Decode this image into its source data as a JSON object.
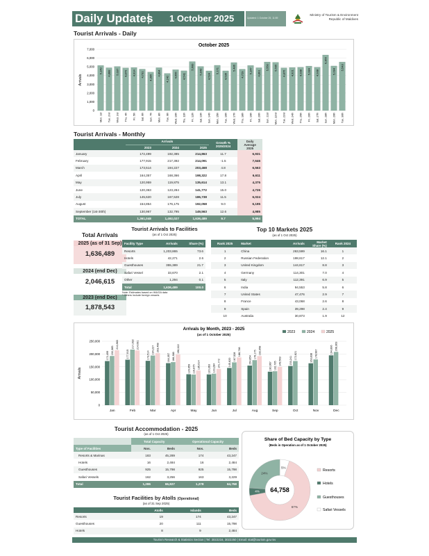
{
  "header": {
    "title": "Daily Updates",
    "separator": "|",
    "date": "1 October 2025",
    "updated": "Updated: 1 October 25, 11:59",
    "ministry_line1": "Ministry of Tourism & Environment",
    "ministry_line2": "Republic of Maldives"
  },
  "colors": {
    "primary": "#4f7a6c",
    "light": "#d9e4df",
    "pink": "#f4d3d3",
    "y2023": "#4f7a6c",
    "y2024": "#8fb3a4",
    "y2025": "#f4d3d3"
  },
  "daily": {
    "section_title": "Tourist Arrivals - Daily",
    "chart_title": "October 2025",
    "ylabel": "Arrivals"
  },
  "monthly": {
    "section_title": "Tourist Arrivals - Monthly",
    "group_header": "Arrivals",
    "col_growth": "Growth %",
    "col_growth2": "2025/2024",
    "col_daily": "Daily",
    "col_daily2": "Average",
    "col_daily3": "2025",
    "years": [
      "2023",
      "2024",
      "2025"
    ],
    "rows": [
      {
        "m": "January",
        "a": "172,499",
        "b": "192,385",
        "c": "214,863",
        "g": "11.7",
        "d": "6,931"
      },
      {
        "m": "February",
        "a": "177,915",
        "b": "217,392",
        "c": "214,091",
        "g": "-1.5",
        "d": "7,646"
      },
      {
        "m": "March",
        "a": "173,514",
        "b": "194,227",
        "c": "203,468",
        "g": "4.8",
        "d": "6,563"
      },
      {
        "m": "April",
        "a": "164,357",
        "b": "168,366",
        "c": "198,322",
        "g": "17.8",
        "d": "6,611"
      },
      {
        "m": "May",
        "a": "120,959",
        "b": "119,875",
        "c": "135,614",
        "g": "13.1",
        "d": "4,375"
      },
      {
        "m": "June",
        "a": "120,363",
        "b": "123,284",
        "c": "141,772",
        "g": "15.0",
        "d": "4,726"
      },
      {
        "m": "July",
        "a": "145,620",
        "b": "167,528",
        "c": "186,738",
        "g": "11.5",
        "d": "6,024"
      },
      {
        "m": "August",
        "a": "154,854",
        "b": "176,175",
        "c": "192,058",
        "g": "9.0",
        "d": "6,195"
      },
      {
        "m": "September (1st-30th)",
        "a": "130,967",
        "b": "132,795",
        "c": "149,563",
        "g": "12.6",
        "d": "4,985"
      }
    ],
    "total": {
      "m": "TOTAL",
      "a": "1,361,048",
      "b": "1,492,027",
      "c": "1,636,489",
      "g": "9.7",
      "d": "5,994"
    }
  },
  "totals": {
    "title": "Total Arrivals",
    "c2025_label": "2025 (as of 31 Sep)",
    "c2025_value": "1,636,489",
    "c2024_label": "2024 (end Dec)",
    "c2024_value": "2,046,615",
    "c2023_label": "2023 (end Dec)",
    "c2023_value": "1,878,543"
  },
  "facilities": {
    "title": "Tourist Arrivals to Facilities",
    "subtitle": "(as of 1 Oct 2025)",
    "headers": [
      "Facility Type",
      "Arrivals",
      "Share (%)"
    ],
    "rows": [
      {
        "t": "Resorts",
        "a": "1,203,865",
        "s": "73.6"
      },
      {
        "t": "Hotels",
        "a": "42,271",
        "s": "2.6"
      },
      {
        "t": "Guesthouses",
        "a": "355,389",
        "s": "21.7"
      },
      {
        "t": "Safari Vessel",
        "a": "33,670",
        "s": "2.1"
      },
      {
        "t": "Other",
        "a": "1,294",
        "s": "0.1"
      }
    ],
    "total": {
      "t": "Total",
      "a": "1,636,489",
      "s": "100.0"
    },
    "note1": "Note: Estimates based on IMUGA data",
    "note2": "* Others include foreign vessels"
  },
  "markets": {
    "title": "Top 10 Markets 2025",
    "subtitle": "(as of 1 Oct 2025)",
    "headers": [
      "Rank 2025",
      "Market",
      "Arrivals",
      "Market Share (%)",
      "Rank 2024"
    ],
    "rows": [
      {
        "r": "1",
        "m": "China",
        "a": "263,599",
        "s": "16.1",
        "p": "1"
      },
      {
        "r": "2",
        "m": "Russian Federation",
        "a": "198,617",
        "s": "12.1",
        "p": "2"
      },
      {
        "r": "3",
        "m": "United Kingdom",
        "a": "144,617",
        "s": "8.8",
        "p": "3"
      },
      {
        "r": "4",
        "m": "Germany",
        "a": "114,301",
        "s": "7.0",
        "p": "4"
      },
      {
        "r": "5",
        "m": "Italy",
        "a": "112,391",
        "s": "6.9",
        "p": "5"
      },
      {
        "r": "6",
        "m": "India",
        "a": "94,553",
        "s": "5.8",
        "p": "6"
      },
      {
        "r": "7",
        "m": "United States",
        "a": "47,476",
        "s": "2.9",
        "p": "7"
      },
      {
        "r": "8",
        "m": "France",
        "a": "43,068",
        "s": "2.6",
        "p": "8"
      },
      {
        "r": "9",
        "m": "Spain",
        "a": "39,298",
        "s": "2.4",
        "p": "9"
      },
      {
        "r": "10",
        "m": "Australia",
        "a": "30,873",
        "s": "1.9",
        "p": "12"
      }
    ]
  },
  "accommodation": {
    "title": "Tourist Accommodation - 2025",
    "subtitle": "(as of 1 Oct 2025)",
    "group1": "Total Capacity",
    "group2": "Operational Capacity",
    "col_type": "Type of Facilities",
    "col_nos": "Nos.",
    "col_beds": "Beds",
    "rows": [
      {
        "t": "Resorts & Marinas",
        "n1": "183",
        "b1": "45,289",
        "n2": "174",
        "b2": "43,247"
      },
      {
        "t": "Hotels",
        "n1": "16",
        "b1": "2,484",
        "n2": "16",
        "b2": "2,484"
      },
      {
        "t": "Guesthouses",
        "n1": "925",
        "b1": "15,798",
        "n2": "925",
        "b2": "15,798"
      },
      {
        "t": "Safari Vessels",
        "n1": "162",
        "b1": "3,256",
        "n2": "163",
        "b2": "3,229"
      }
    ],
    "total": {
      "t": "Total",
      "n1": "1,286",
      "b1": "66,827",
      "n2": "1,278",
      "b2": "64,758"
    }
  },
  "atolls": {
    "title": "Tourist Facilities by Atolls",
    "title_tag": "(Operational)",
    "subtitle": "(as of 31 Sep 2025)",
    "headers": [
      "Atolls",
      "Islands",
      "Beds"
    ],
    "rows": [
      {
        "t": "Resorts",
        "a": "19",
        "i": "174",
        "b": "43,247"
      },
      {
        "t": "Guesthouses",
        "a": "20",
        "i": "111",
        "b": "15,798"
      },
      {
        "t": "Hotels",
        "a": "8",
        "i": "9",
        "b": "2,484"
      }
    ]
  },
  "footer": {
    "text": "Tourism Research & Statistics Section | Tel: 3022216, 3022250 | Email: stat@tourism.gov.mv"
  },
  "chart_data": [
    {
      "type": "bar",
      "title": "October 2025",
      "ylabel": "Arrivals",
      "ylim": [
        0,
        7000
      ],
      "yticks": [
        "0",
        "1,000",
        "2,000",
        "3,000",
        "4,000",
        "5,000",
        "6,000",
        "7,000"
      ],
      "categories": [
        "Mon, 1st",
        "Tue, 2nd",
        "Wed, 3rd",
        "Thu, 4th",
        "Fri, 5th",
        "Sat, 6th",
        "Sun, 7th",
        "Mon, 8th",
        "Tue, 9th",
        "Wed, 10th",
        "Thu, 11th",
        "Fri, 12th",
        "Sat, 13th",
        "Sun, 14th",
        "Mon, 15th",
        "Tue, 16th",
        "Wed, 17th",
        "Thu, 18th",
        "Fri, 19th",
        "Sat, 20th",
        "Sun, 21st",
        "Mon, 22nd",
        "Tue, 23rd",
        "Wed, 24th",
        "Thu, 25th",
        "Fri, 26th",
        "Sat, 27th",
        "Sun, 28th",
        "Mon, 29th",
        "Tue, 30th"
      ],
      "values": [
        5149,
        4888,
        5037,
        4870,
        4914,
        4731,
        4395,
        4894,
        4242,
        4666,
        4541,
        5600,
        5043,
        4534,
        5171,
        4536,
        5486,
        4729,
        5147,
        4891,
        5550,
        5505,
        4876,
        4921,
        4938,
        5084,
        4938,
        6355,
        5094,
        5543
      ],
      "labels": [
        "5,149",
        "4,888",
        "5,037",
        "4,870",
        "4,914",
        "4,731",
        "4,395",
        "4,894",
        "4,242",
        "4,666",
        "4,541",
        "5,600",
        "5,043",
        "4,534",
        "5,171",
        "4,536",
        "5,486",
        "4,729",
        "5,147",
        "4,891",
        "5,550",
        "5,505",
        "4,876",
        "4,921",
        "4,938",
        "5,084",
        "4,938",
        "6,355",
        "5,094",
        "5,543"
      ]
    },
    {
      "type": "bar",
      "title": "Arrivals by Month, 2023 - 2025",
      "subtitle": "(as of 1 October 2025)",
      "ylabel": "Arrivals",
      "ylim": [
        0,
        250000
      ],
      "yticks": [
        "0",
        "50,000",
        "100,000",
        "150,000",
        "200,000",
        "250,000"
      ],
      "categories": [
        "Jan",
        "Feb",
        "Mar",
        "Apr",
        "May",
        "Jun",
        "Jul",
        "Aug",
        "Sep",
        "Oct",
        "Nov",
        "Dec"
      ],
      "legend": "top-right",
      "series": [
        {
          "name": "2023",
          "values": [
            172499,
            177915,
            173514,
            164357,
            120959,
            120363,
            145620,
            154854,
            130967,
            153241,
            163838,
            194896
          ],
          "labels": [
            "172,499",
            "177,915",
            "173,514",
            "164,357",
            "120,959",
            "120,363",
            "145,620",
            "154,854",
            "130,967",
            "153,241",
            "163,838",
            "194,896"
          ]
        },
        {
          "name": "2024",
          "values": [
            192385,
            217392,
            194227,
            168366,
            119875,
            123284,
            167528,
            176175,
            132795,
            172621,
            178987,
            208363
          ],
          "labels": [
            "192,385",
            "217,392",
            "194,227",
            "168,366",
            "119,875",
            "123,284",
            "167,528",
            "176,175",
            "132,795",
            "172,621",
            "178,987",
            "208,363"
          ]
        },
        {
          "name": "2025",
          "values": [
            214863,
            214091,
            203468,
            198322,
            135614,
            141772,
            186738,
            192058,
            149563,
            null,
            null,
            null
          ],
          "labels": [
            "214,863",
            "214,091",
            "203,468",
            "198,322",
            "135,614",
            "141,772",
            "186,738",
            "192,058",
            "149,563",
            "",
            "",
            ""
          ]
        }
      ]
    },
    {
      "type": "pie",
      "title": "Share of Bed Capacity by Type",
      "subtitle": "(Beds in Operation as of 1 October 2025)",
      "center_label": "64,758",
      "categories": [
        "Resorts",
        "Hotels",
        "Guesthouses",
        "Safari Vessels"
      ],
      "values": [
        67,
        4,
        24,
        5
      ],
      "labels": [
        "67%",
        "4%",
        "24%",
        "5%"
      ],
      "colors": [
        "#f4d3d3",
        "#4f7a6c",
        "#8fb3a4",
        "#ffffff"
      ]
    }
  ]
}
